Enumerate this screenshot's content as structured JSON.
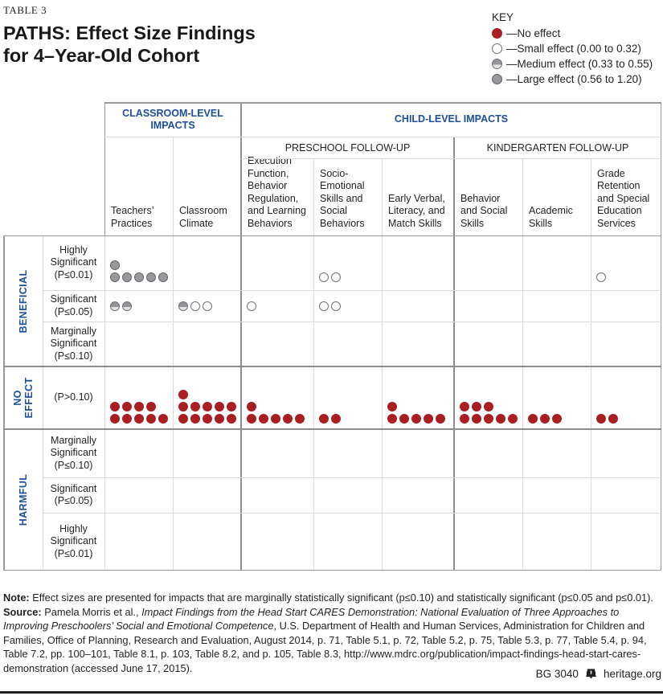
{
  "meta": {
    "table_label": "TABLE 3",
    "title_line1": "PATHS: Effect Size Findings",
    "title_line2": "for 4–Year-Old Cohort"
  },
  "key": {
    "heading": "KEY",
    "items": [
      {
        "code": "R",
        "label": "—No effect"
      },
      {
        "code": "S",
        "label": "—Small effect (0.00 to 0.32)"
      },
      {
        "code": "M",
        "label": "—Medium effect (0.33 to 0.55)"
      },
      {
        "code": "L",
        "label": "—Large effect (0.56 to 1.20)"
      }
    ]
  },
  "chart_data": {
    "type": "table",
    "title": "PATHS: Effect Size Findings for 4-Year-Old Cohort",
    "legend": [
      "No effect",
      "Small effect (0.00 to 0.32)",
      "Medium effect (0.33 to 0.55)",
      "Large effect (0.56 to 1.20)"
    ],
    "code_key": {
      "R": "no-effect",
      "S": "small-effect",
      "M": "medium-effect",
      "L": "large-effect"
    },
    "columns": {
      "groups": [
        {
          "label": "CLASSROOM-LEVEL IMPACTS",
          "span": 2
        },
        {
          "label": "CHILD-LEVEL IMPACTS",
          "span": 6
        }
      ],
      "subgroups": [
        {
          "label": "PRESCHOOL FOLLOW-UP",
          "span": 3
        },
        {
          "label": "KINDERGARTEN FOLLOW-UP",
          "span": 3
        }
      ],
      "leaves": [
        "Teachers’ Practices",
        "Classroom Climate",
        "Execution Function, Behavior Regulation, and Learning Behaviors",
        "Socio-Emotional Skills and Social Behaviors",
        "Early Verbal, Literacy, and Match Skills",
        "Behavior and Social Skills",
        "Academic Skills",
        "Grade Retention and Special Education Services"
      ]
    },
    "rows": {
      "groups": [
        {
          "label": "BENEFICIAL",
          "span": 3
        },
        {
          "label": "NO EFFECT",
          "span": 1
        },
        {
          "label": "HARMFUL",
          "span": 3
        }
      ],
      "labels": [
        "Highly Significant (P≤0.01)",
        "Significant (P≤0.05)",
        "Marginally Significant (P≤0.10)",
        "(P>0.10)",
        "Marginally Significant (P≤0.10)",
        "Significant (P≤0.05)",
        "Highly Significant (P≤0.01)"
      ]
    },
    "cells": [
      [
        [
          [
            "L"
          ],
          [
            "L",
            "L",
            "L",
            "L",
            "L"
          ]
        ],
        [],
        [],
        [
          [
            "S",
            "S"
          ]
        ],
        [],
        [],
        [],
        [
          [
            "S"
          ]
        ]
      ],
      [
        [
          [
            "M",
            "M"
          ]
        ],
        [
          [
            "M",
            "S",
            "S"
          ]
        ],
        [
          [
            "S"
          ]
        ],
        [
          [
            "S",
            "S"
          ]
        ],
        [],
        [],
        [],
        []
      ],
      [
        [],
        [],
        [],
        [],
        [],
        [],
        [],
        []
      ],
      [
        [
          [
            "R",
            "R",
            "R",
            "R"
          ],
          [
            "R",
            "R",
            "R",
            "R",
            "R"
          ]
        ],
        [
          [
            "R"
          ],
          [
            "R",
            "R",
            "R",
            "R",
            "R"
          ],
          [
            "R",
            "R",
            "R",
            "R",
            "R"
          ]
        ],
        [
          [
            "R"
          ],
          [
            "R",
            "R",
            "R",
            "R",
            "R"
          ]
        ],
        [
          [
            "R",
            "R"
          ]
        ],
        [
          [
            "R"
          ],
          [
            "R",
            "R",
            "R",
            "R",
            "R"
          ]
        ],
        [
          [
            "R",
            "R",
            "R"
          ],
          [
            "R",
            "R",
            "R",
            "R",
            "R"
          ]
        ],
        [
          [
            "R",
            "R",
            "R"
          ]
        ],
        [
          [
            "R",
            "R"
          ]
        ]
      ],
      [
        [],
        [],
        [],
        [],
        [],
        [],
        [],
        []
      ],
      [
        [],
        [],
        [],
        [],
        [],
        [],
        [],
        []
      ],
      [
        [],
        [],
        [],
        [],
        [],
        [],
        [],
        []
      ]
    ]
  },
  "notes": {
    "note_parts": [
      {
        "t": "Note: ",
        "b": true
      },
      {
        "t": "Effect sizes are presented for impacts that are marginally statistically significant (p≤0.10) and statistically significant (p≤0.05 and p≤0.01)."
      }
    ],
    "source_parts": [
      {
        "t": "Source: ",
        "b": true
      },
      {
        "t": "Pamela Morris et al., "
      },
      {
        "t": "Impact Findings from the Head Start CARES Demonstration: National Evaluation of Three Approaches to Improving Preschoolers’ Social and Emotional Competence",
        "i": true
      },
      {
        "t": ", U.S. Department of Health and Human Services, Administration for Children and Families, Office of Planning, Research and Evaluation, August 2014, p. 71, Table 5.1, p. 72, Table 5.2, p. 75, Table 5.3, p. 77, Table 5.4, p. 94, Table 7.2, pp. 100–101, Table 8.1, p. 103, Table 8.2, and p. 105, Table 8.3, http://www.mdrc.org/publication/impact-findings-head-start-cares-demonstration (accessed June 17, 2015)."
      }
    ]
  },
  "footer": {
    "doc_id": "BG 3040",
    "site": "heritage.org"
  },
  "colors": {
    "accent_blue": "#1c4f9c",
    "no_effect_red": "#a91e22",
    "large_gray": "#97999c",
    "medium_gray": "#c9cacc",
    "text": "#231f20"
  }
}
